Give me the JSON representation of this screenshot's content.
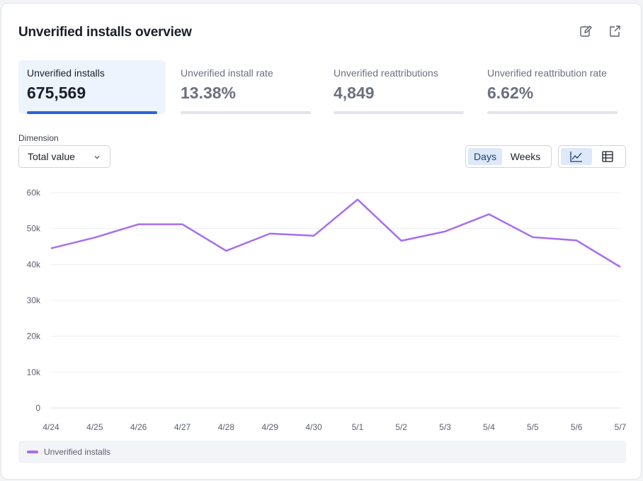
{
  "header": {
    "title": "Unverified installs overview",
    "edit_icon": "edit-icon",
    "export_icon": "export-icon"
  },
  "metrics": [
    {
      "label": "Unverified installs",
      "value": "675,569",
      "active": true
    },
    {
      "label": "Unverified install rate",
      "value": "13.38%",
      "active": false
    },
    {
      "label": "Unverified reattributions",
      "value": "4,849",
      "active": false
    },
    {
      "label": "Unverified reattribution rate",
      "value": "6.62%",
      "active": false
    }
  ],
  "controls": {
    "dimension_label": "Dimension",
    "dimension_value": "Total value",
    "period_options": [
      "Days",
      "Weeks"
    ],
    "period_selected": "Days",
    "view_options": [
      "line-chart-icon",
      "table-icon"
    ],
    "view_selected": "line-chart-icon"
  },
  "colors": {
    "accent": "#2b63d9",
    "series": "#a66ef0",
    "active_bg": "#eef4fd"
  },
  "chart_data": {
    "type": "line",
    "x": [
      "4/24",
      "4/25",
      "4/26",
      "4/27",
      "4/28",
      "4/29",
      "4/30",
      "5/1",
      "5/2",
      "5/3",
      "5/4",
      "5/5",
      "5/6",
      "5/7"
    ],
    "series": [
      {
        "name": "Unverified installs",
        "values": [
          44500,
          47500,
          51200,
          51200,
          43800,
          48600,
          48000,
          58100,
          46600,
          49200,
          54000,
          47600,
          46700,
          39300
        ]
      }
    ],
    "y_ticks": [
      "0",
      "10k",
      "20k",
      "30k",
      "40k",
      "50k",
      "60k"
    ],
    "ylim": [
      0,
      60000
    ],
    "grid": true,
    "legend_position": "bottom"
  }
}
